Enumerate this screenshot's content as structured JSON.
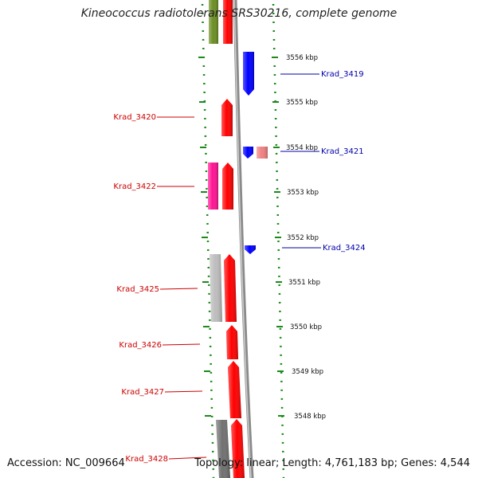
{
  "title": "Kineococcus radiotolerans SRS30216, complete genome",
  "footer": {
    "accession": "Accession: NC_009664",
    "topology": "Topology: linear; Length: 4,761,183 bp; Genes: 4,544"
  },
  "colors": {
    "forward_label": "#cc0000",
    "reverse_label": "#0000aa",
    "tick": "#1a8a1a",
    "axis": "#8a8a8a"
  },
  "ruler": {
    "ticks": [
      {
        "label": "3556 kbp"
      },
      {
        "label": "3555 kbp"
      },
      {
        "label": "3554 kbp"
      },
      {
        "label": "3553 kbp"
      },
      {
        "label": "3552 kbp"
      },
      {
        "label": "3551 kbp"
      },
      {
        "label": "3550 kbp"
      },
      {
        "label": "3549 kbp"
      },
      {
        "label": "3548 kbp"
      }
    ]
  },
  "gene_labels": [
    {
      "text": "Krad_3419",
      "strand": "reverse"
    },
    {
      "text": "Krad_3420",
      "strand": "forward"
    },
    {
      "text": "Krad_3421",
      "strand": "reverse"
    },
    {
      "text": "Krad_3422",
      "strand": "forward"
    },
    {
      "text": "Krad_3424",
      "strand": "reverse"
    },
    {
      "text": "Krad_3425",
      "strand": "forward"
    },
    {
      "text": "Krad_3426",
      "strand": "forward"
    },
    {
      "text": "Krad_3427",
      "strand": "forward"
    },
    {
      "text": "Krad_3428",
      "strand": "forward"
    }
  ],
  "features": [
    {
      "name": "feature-olive",
      "color": "#6b8e23"
    },
    {
      "name": "feature-red-top",
      "color": "#ff0000"
    },
    {
      "name": "gene-krad-3419",
      "color": "#0000ff"
    },
    {
      "name": "gene-krad-3420",
      "color": "#ff0000"
    },
    {
      "name": "gene-krad-3421",
      "color": "#0000ff"
    },
    {
      "name": "feature-pink-3421",
      "color": "#f08080"
    },
    {
      "name": "feature-magenta-3422",
      "color": "#ff1493"
    },
    {
      "name": "gene-krad-3422",
      "color": "#ff0000"
    },
    {
      "name": "gene-krad-3424",
      "color": "#0000ff"
    },
    {
      "name": "feature-grey-3425",
      "color": "#bdbdbd"
    },
    {
      "name": "gene-krad-3425",
      "color": "#ff0000"
    },
    {
      "name": "gene-krad-3426",
      "color": "#ff0000"
    },
    {
      "name": "gene-krad-3427",
      "color": "#ff0000"
    },
    {
      "name": "feature-dark-grey-3428",
      "color": "#707070"
    },
    {
      "name": "gene-krad-3428",
      "color": "#ff0000"
    }
  ]
}
